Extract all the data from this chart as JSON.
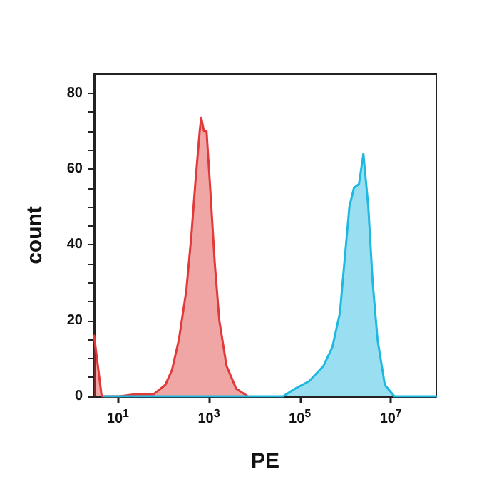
{
  "chart_data": {
    "type": "area",
    "xlabel": "PE",
    "ylabel": "count",
    "log": "x",
    "xlim": [
      3,
      100000000
    ],
    "xticks": [
      {
        "value": 10,
        "label": "10$^{1}$"
      },
      {
        "value": 1000,
        "label": "10$^{3}$"
      },
      {
        "value": 100000,
        "label": "10$^{5}$"
      },
      {
        "value": 10000000,
        "label": "10$^{7}$"
      }
    ],
    "ylim": [
      0,
      85
    ],
    "yticks": [
      0,
      {
        "value": 5,
        "label": null
      },
      {
        "value": 10,
        "label": null
      },
      {
        "value": 15,
        "label": null
      },
      20,
      {
        "value": 25,
        "label": null
      },
      {
        "value": 30,
        "label": null
      },
      {
        "value": 35,
        "label": null
      },
      40,
      {
        "value": 45,
        "label": null
      },
      {
        "value": 50,
        "label": null
      },
      {
        "value": 55,
        "label": null
      },
      60,
      {
        "value": 65,
        "label": null
      },
      {
        "value": 70,
        "label": null
      },
      {
        "value": 75,
        "label": null
      },
      80
    ],
    "grid": false,
    "marker": "none",
    "line_style": "solid",
    "series": [
      {
        "color": "#e03a3a",
        "x": [
          3,
          4.4,
          11,
          23,
          60,
          110,
          155,
          220,
          320,
          410,
          510,
          630,
          680,
          780,
          890,
          1070,
          1350,
          1700,
          2450,
          4000,
          7200
        ],
        "values": [
          16,
          0,
          0,
          0.5,
          0.5,
          3,
          7,
          15,
          28,
          42,
          57,
          70,
          73.5,
          70,
          70,
          55,
          35,
          20,
          8,
          2,
          0
        ]
      },
      {
        "color": "#1fb8e0",
        "x": [
          5,
          43000,
          78000,
          160000,
          330000,
          520000,
          760000,
          950000,
          1230000,
          1550000,
          2000000,
          2500000,
          3200000,
          4000000,
          5100000,
          7400000,
          12000000,
          100000000
        ],
        "values": [
          0,
          0,
          2,
          4,
          8,
          13,
          22,
          35,
          50,
          55,
          56,
          64,
          50,
          30,
          15,
          3,
          0,
          0
        ]
      }
    ]
  }
}
